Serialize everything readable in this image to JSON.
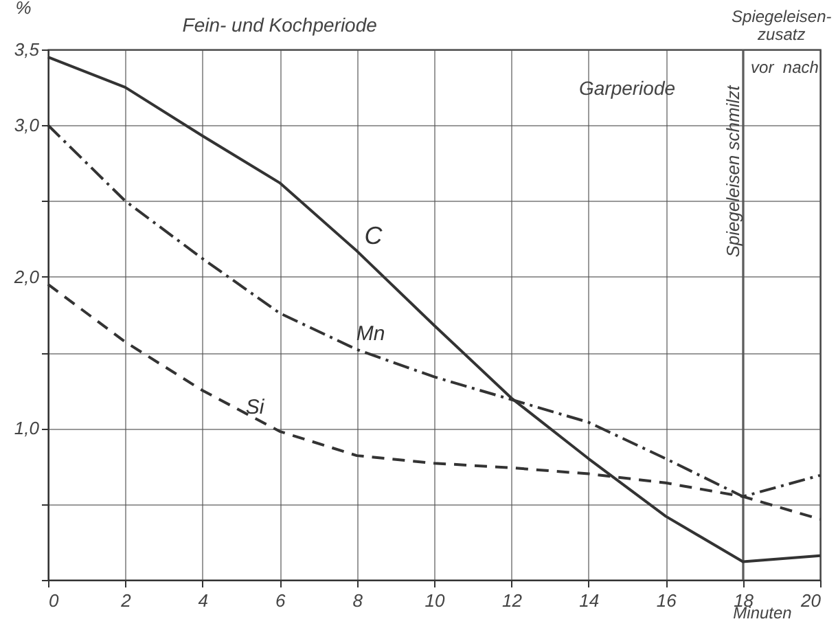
{
  "chart_data": {
    "type": "line",
    "xlabel": "Minuten",
    "ylabel": "%",
    "x": [
      0,
      2,
      4,
      6,
      8,
      10,
      12,
      14,
      16,
      18,
      20
    ],
    "series": [
      {
        "name": "C",
        "color": "#333333",
        "line_style": "solid",
        "values": [
          3.45,
          3.25,
          2.93,
          2.62,
          2.17,
          1.68,
          1.2,
          0.8,
          0.42,
          0.12,
          0.16
        ]
      },
      {
        "name": "Mn",
        "color": "#333333",
        "line_style": "dashdot",
        "values": [
          3.0,
          2.5,
          2.12,
          1.76,
          1.52,
          1.34,
          1.19,
          1.04,
          0.8,
          0.55,
          0.69
        ]
      },
      {
        "name": "Si",
        "color": "#333333",
        "line_style": "dashed",
        "values": [
          1.95,
          1.57,
          1.25,
          0.98,
          0.82,
          0.77,
          0.74,
          0.7,
          0.64,
          0.55,
          0.4
        ]
      }
    ],
    "xlim": [
      0,
      20
    ],
    "xticks": [
      0,
      2,
      4,
      6,
      8,
      10,
      12,
      14,
      16,
      18,
      20
    ],
    "ylim": [
      0,
      3.5
    ],
    "yticks": [
      {
        "value": 0,
        "label": null
      },
      {
        "value": 0.5,
        "label": null
      },
      {
        "value": 1.0,
        "label": "1,0"
      },
      {
        "value": 1.5,
        "label": null
      },
      {
        "value": 2.0,
        "label": "2,0"
      },
      {
        "value": 2.5,
        "label": null
      },
      {
        "value": 3.0,
        "label": "3,0"
      },
      {
        "value": 3.5,
        "label": "3,5"
      }
    ],
    "grid": true,
    "marker": "none",
    "annotations": [
      "Fein- und Kochperiode",
      "Garperiode",
      "Spiegeleisen-\nzusatz",
      "vor",
      "nach"
    ],
    "ref_lines": [
      {
        "axis": "x",
        "value": 18,
        "label": "Spiegeleisen schmilzt"
      }
    ]
  }
}
